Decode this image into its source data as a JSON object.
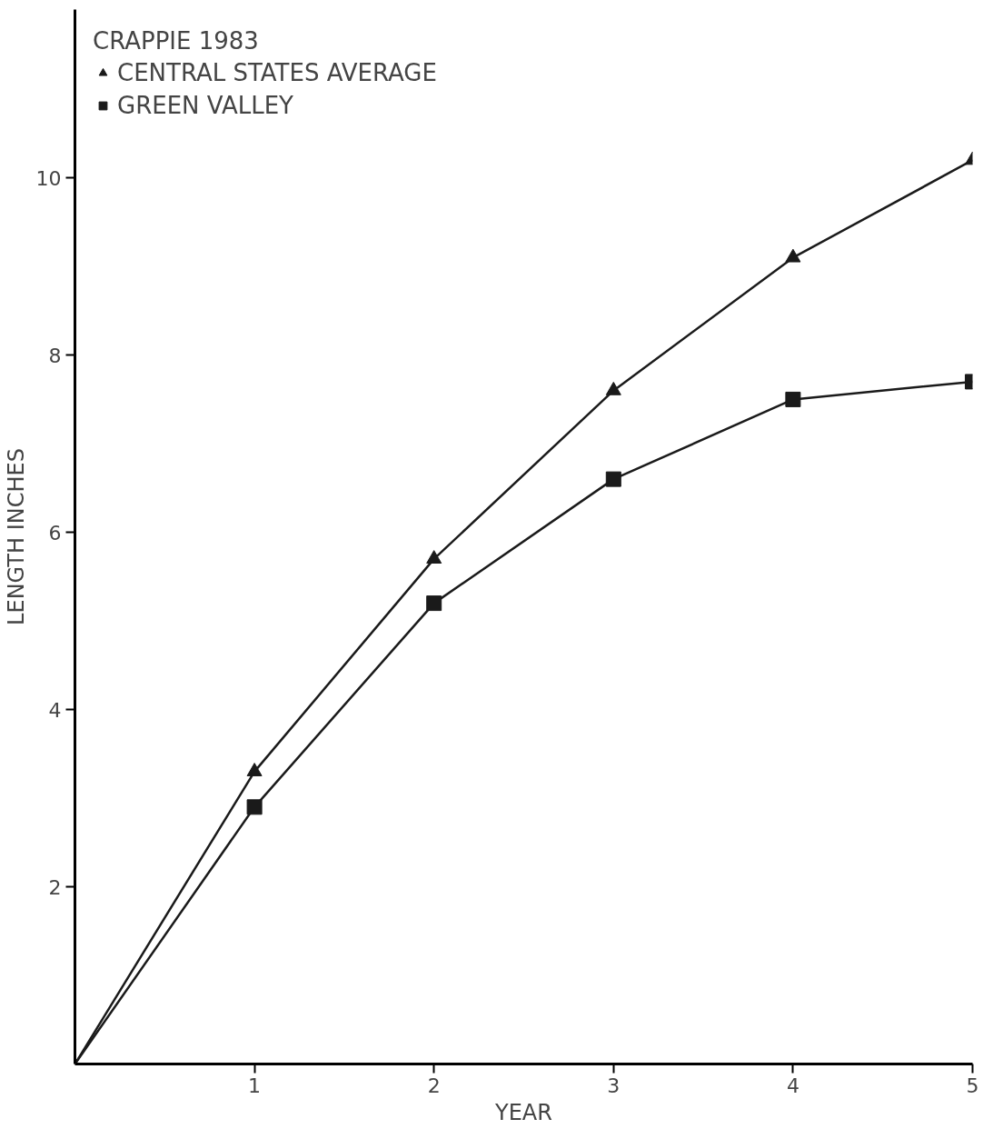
{
  "chart_data": {
    "type": "line",
    "xlabel": "YEAR",
    "ylabel": "LENGTH INCHES",
    "legend_title": "CRAPPIE 1983",
    "x": [
      0,
      1,
      2,
      3,
      4,
      5
    ],
    "series": [
      {
        "name": "CENTRAL STATES AVERAGE",
        "color": "#1a1a1a",
        "marker": "triangle",
        "values": [
          0,
          3.3,
          5.7,
          7.6,
          9.1,
          10.2
        ]
      },
      {
        "name": "GREEN VALLEY",
        "color": "#1a1a1a",
        "marker": "square",
        "values": [
          0,
          2.9,
          5.2,
          6.6,
          7.5,
          7.7
        ]
      }
    ],
    "xlim": [
      0,
      5
    ],
    "ylim": [
      0,
      11.9
    ],
    "xticks": [
      1,
      2,
      3,
      4,
      5
    ],
    "yticks": [
      2,
      4,
      6,
      8,
      10
    ],
    "grid": false,
    "legend": "top left",
    "line_style": "solid"
  }
}
